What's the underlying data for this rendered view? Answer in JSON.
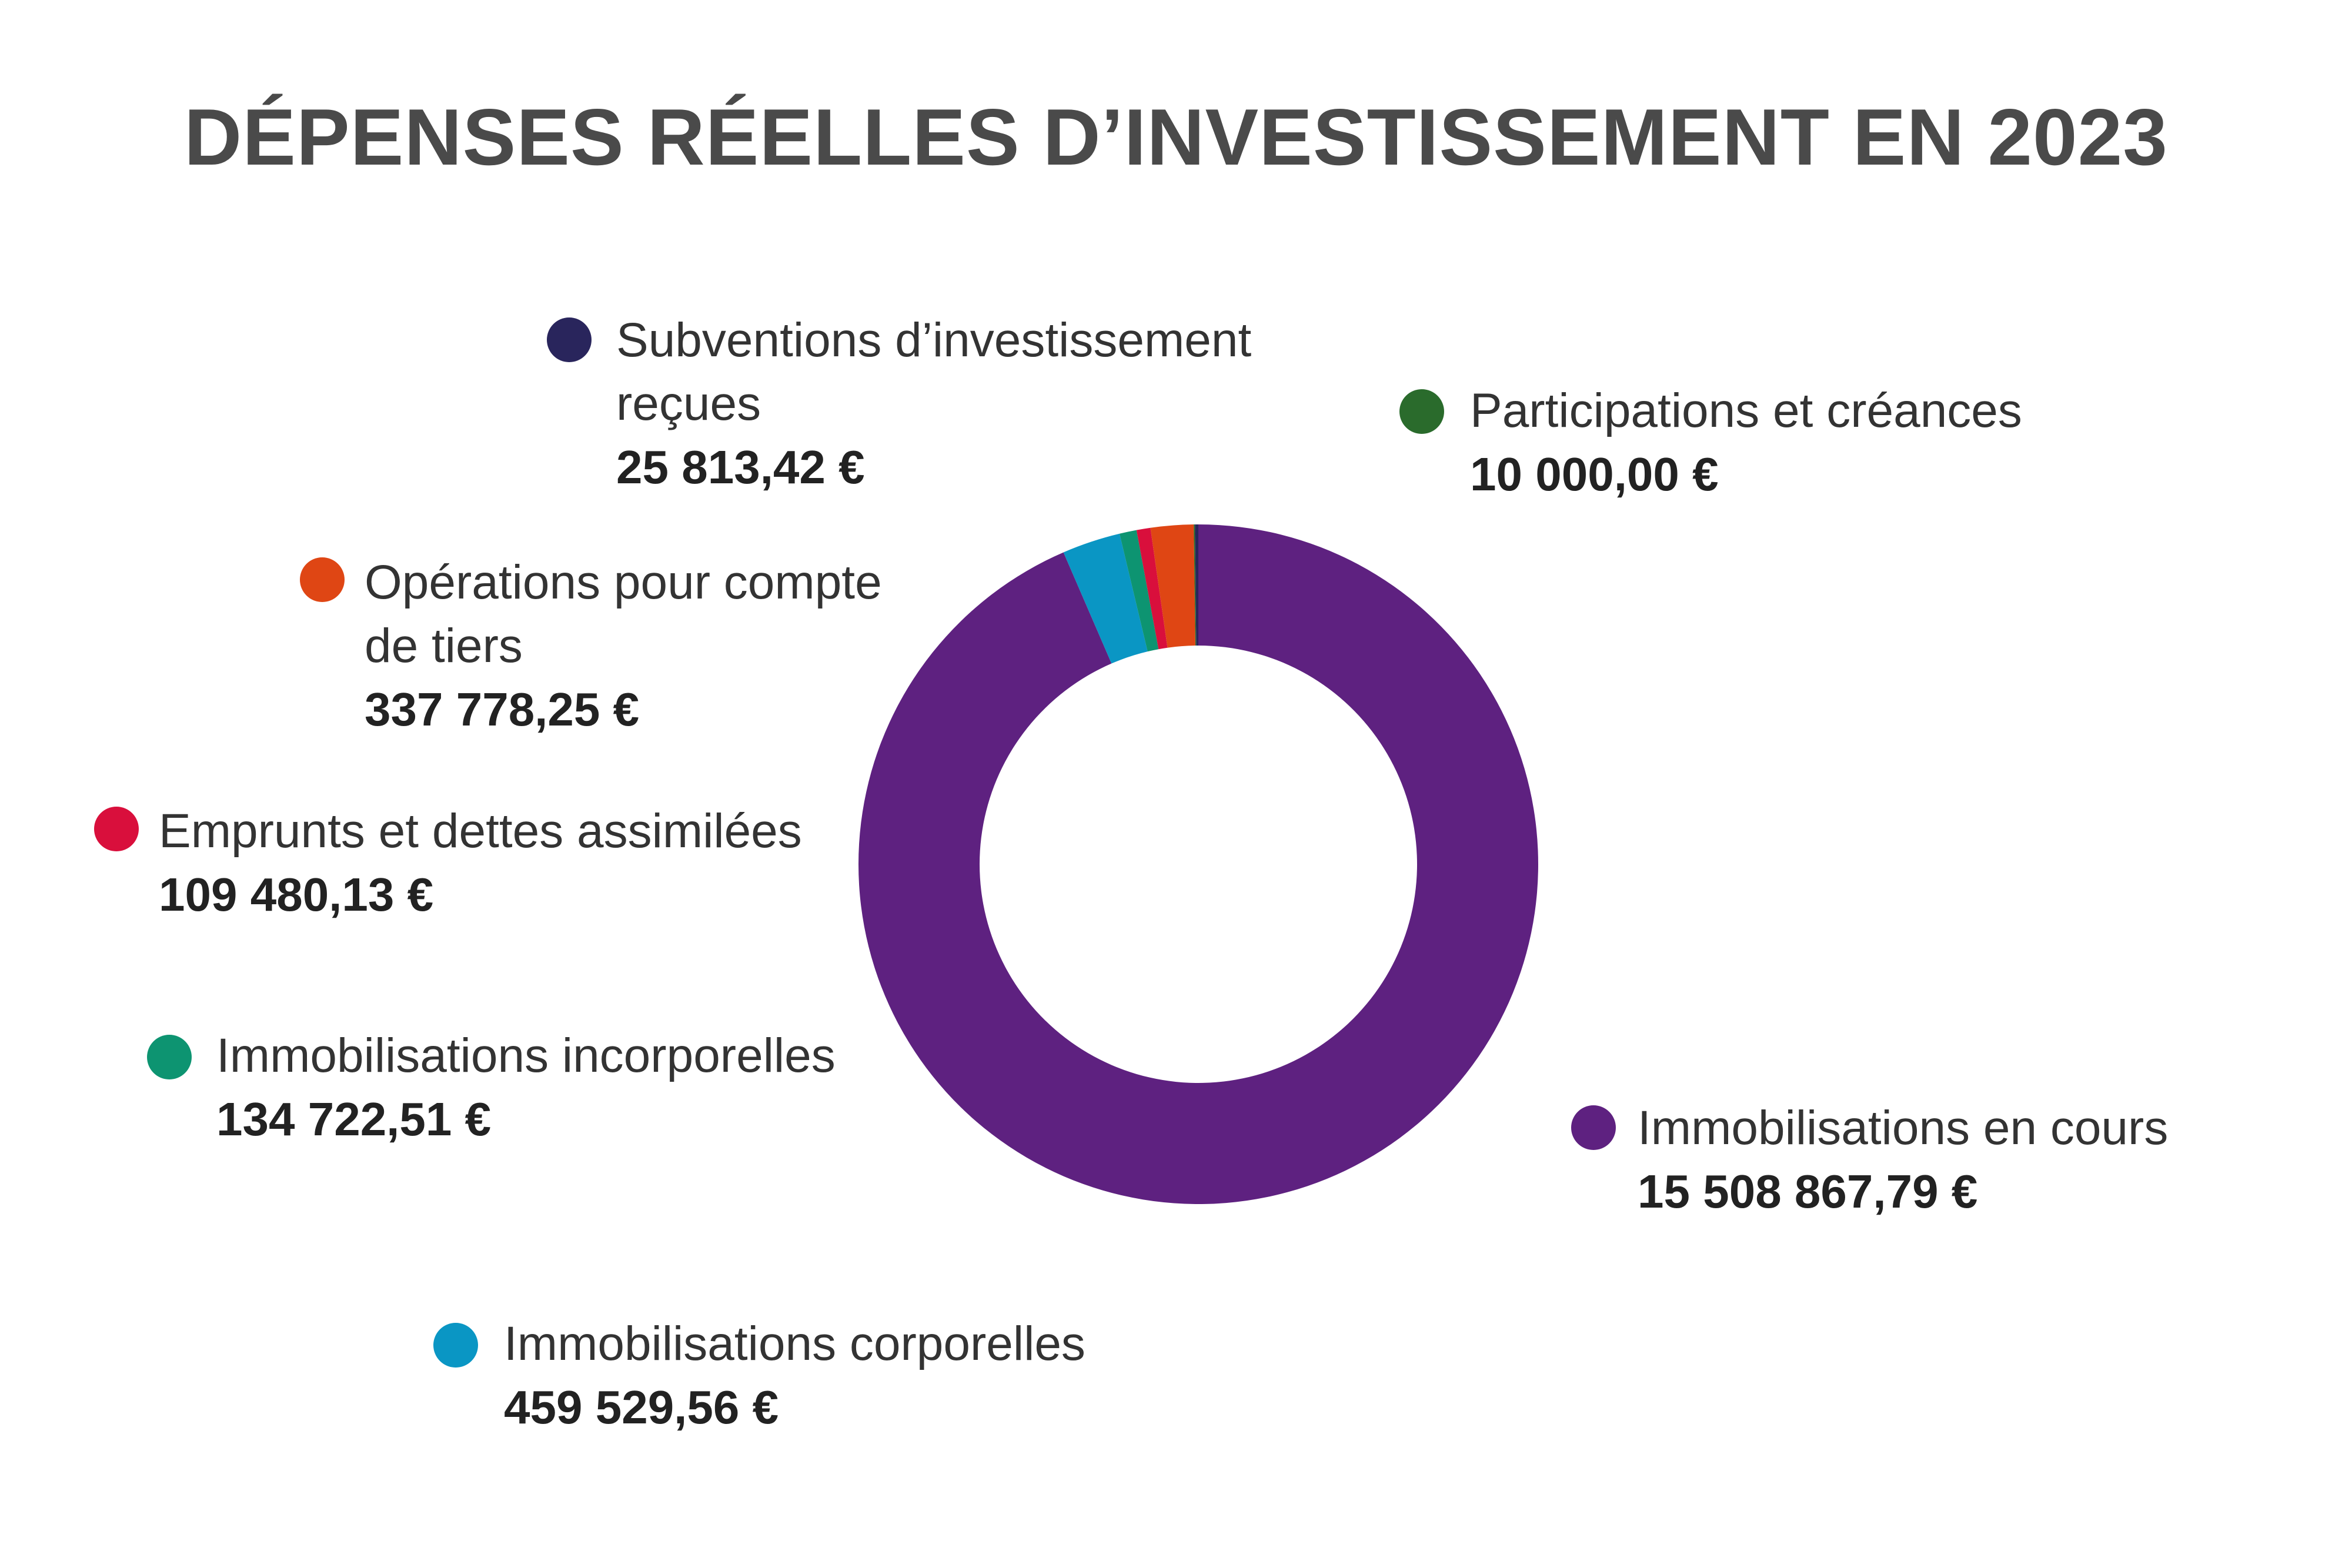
{
  "title": "DÉPENSES RÉELLES D’INVESTISSEMENT EN 2023",
  "chart_data": {
    "type": "pie",
    "variant": "donut",
    "title": "DÉPENSES RÉELLES D’INVESTISSEMENT EN 2023",
    "unit": "€",
    "series": [
      {
        "name": "Immobilisations en cours",
        "value": 15508867.79,
        "display": "15 508 867,79 €",
        "color": "#5e2180",
        "order": 0
      },
      {
        "name": "Immobilisations corporelles",
        "value": 459529.56,
        "display": "459 529,56 €",
        "color": "#0a96c4",
        "order": 1
      },
      {
        "name": "Immobilisations incorporelles",
        "value": 134722.51,
        "display": "134 722,51 €",
        "color": "#0d9471",
        "order": 2
      },
      {
        "name": "Emprunts et dettes assimilées",
        "value": 109480.13,
        "display": "109 480,13 €",
        "color": "#d90f3c",
        "order": 3
      },
      {
        "name": "Opérations pour compte de tiers",
        "value": 337778.25,
        "display": "337 778,25 €",
        "color": "#df4614",
        "order": 4
      },
      {
        "name": "Participations et créances",
        "value": 10000.0,
        "display": "10 000,00 €",
        "color": "#2a6b2c",
        "order": 5
      },
      {
        "name": "Subventions d’investissement reçues",
        "value": 25813.42,
        "display": "25 813,42 €",
        "color": "#29255c",
        "order": 6
      }
    ]
  },
  "legend": {
    "subventions": {
      "label_line1": "Subventions d’investissement",
      "label_line2": "reçues",
      "value": "25 813,42 €",
      "color": "#29255c"
    },
    "participations": {
      "label_line1": "Participations et créances",
      "value": "10 000,00 €",
      "color": "#2a6b2c"
    },
    "operations": {
      "label_line1": "Opérations pour compte",
      "label_line2": "de tiers",
      "value": "337 778,25 €",
      "color": "#df4614"
    },
    "emprunts": {
      "label_line1": "Emprunts et dettes assimilées",
      "value": "109 480,13 €",
      "color": "#d90f3c"
    },
    "incorporelles": {
      "label_line1": "Immobilisations incorporelles",
      "value": "134 722,51 €",
      "color": "#0d9471"
    },
    "en_cours": {
      "label_line1": "Immobilisations en cours",
      "value": "15 508 867,79 €",
      "color": "#5e2180"
    },
    "corporelles": {
      "label_line1": "Immobilisations corporelles",
      "value": "459 529,56 €",
      "color": "#0a96c4"
    }
  }
}
